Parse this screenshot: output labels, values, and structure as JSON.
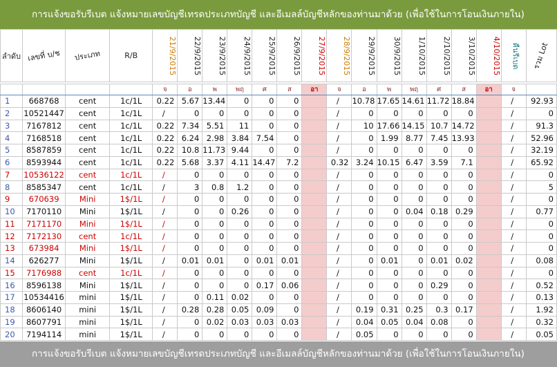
{
  "banner_top": "การแจ้งขอรับรีเบต  แจ้งหมายเลขบัญชีเทรดประเภทบัญชี และอีเมลล์บัญชีหลักของท่านมาด้วย   (เพื่อใช้ในการโอนเงินภายใน)",
  "banner_bottom": "การแจ้งขอรับรีเบต  แจ้งหมายเลขบัญชีเทรดประเภทบัญชี และอีเมลล์บัญชีหลักของท่านมาด้วย   (เพื่อใช้ในการโอนเงินภายใน)",
  "header": {
    "index": "ลำดับ",
    "account": "เลขที่ บ/ช",
    "type": "ประเภท",
    "rb": "R/B",
    "dates": [
      "21/9/2015",
      "22/9/2015",
      "23/9/2015",
      "24/9/2015",
      "25/9/2015",
      "26/9/2015",
      "27/9/2015",
      "28/9/2015",
      "29/9/2015",
      "30/9/2015",
      "1/10/2015",
      "2/10/2015",
      "3/10/2015",
      "4/10/2015"
    ],
    "refund": "คืนรีเบต",
    "total": "รวม Lot"
  },
  "days": [
    "จ",
    "อ",
    "พ",
    "พฤ",
    "ศ",
    "ส",
    "อา",
    "จ",
    "อ",
    "พ",
    "พฤ",
    "ศ",
    "ส",
    "อา",
    "จ"
  ],
  "rows": [
    {
      "idx": "1",
      "acc": "668768",
      "type": "cent",
      "rb": "1c/1L",
      "v": [
        "0.22",
        "5.67",
        "13.44",
        "0",
        "0",
        "0",
        "",
        "/",
        "10.78",
        "17.65",
        "14.61",
        "11.72",
        "18.84",
        "",
        "/"
      ],
      "total": "92.93",
      "red": false
    },
    {
      "idx": "2",
      "acc": "10521447",
      "type": "cent",
      "rb": "1c/1L",
      "v": [
        "/",
        "0",
        "0",
        "0",
        "0",
        "0",
        "",
        "/",
        "0",
        "0",
        "0",
        "0",
        "0",
        "",
        "/"
      ],
      "total": "0",
      "red": false
    },
    {
      "idx": "3",
      "acc": "7167812",
      "type": "cent",
      "rb": "1c/1L",
      "v": [
        "0.22",
        "7.34",
        "5.51",
        "11",
        "0",
        "0",
        "",
        "/",
        "10",
        "17.66",
        "14.15",
        "10.7",
        "14.72",
        "",
        "/"
      ],
      "total": "91.3",
      "red": false
    },
    {
      "idx": "4",
      "acc": "7168518",
      "type": "cent",
      "rb": "1c/1L",
      "v": [
        "0.22",
        "6.24",
        "2.98",
        "3.84",
        "7.54",
        "0",
        "",
        "/",
        "0",
        "1.99",
        "8.77",
        "7.45",
        "13.93",
        "",
        "/"
      ],
      "total": "52.96",
      "red": false
    },
    {
      "idx": "5",
      "acc": "8587859",
      "type": "cent",
      "rb": "1c/1L",
      "v": [
        "0.22",
        "10.8",
        "11.73",
        "9.44",
        "0",
        "0",
        "",
        "/",
        "0",
        "0",
        "0",
        "0",
        "0",
        "",
        "/"
      ],
      "total": "32.19",
      "red": false
    },
    {
      "idx": "6",
      "acc": "8593944",
      "type": "cent",
      "rb": "1c/1L",
      "v": [
        "0.22",
        "5.68",
        "3.37",
        "4.11",
        "14.47",
        "7.2",
        "",
        "0.32",
        "3.24",
        "10.15",
        "6.47",
        "3.59",
        "7.1",
        "",
        "/"
      ],
      "total": "65.92",
      "red": false
    },
    {
      "idx": "7",
      "acc": "10536122",
      "type": "cent",
      "rb": "1c/1L",
      "v": [
        "/",
        "0",
        "0",
        "0",
        "0",
        "0",
        "",
        "/",
        "0",
        "0",
        "0",
        "0",
        "0",
        "",
        "/"
      ],
      "total": "0",
      "red": true
    },
    {
      "idx": "8",
      "acc": "8585347",
      "type": "cent",
      "rb": "1c/1L",
      "v": [
        "/",
        "3",
        "0.8",
        "1.2",
        "0",
        "0",
        "",
        "/",
        "0",
        "0",
        "0",
        "0",
        "0",
        "",
        "/"
      ],
      "total": "5",
      "red": false
    },
    {
      "idx": "9",
      "acc": "670639",
      "type": "Mini",
      "rb": "1$/1L",
      "v": [
        "/",
        "0",
        "0",
        "0",
        "0",
        "0",
        "",
        "/",
        "0",
        "0",
        "0",
        "0",
        "0",
        "",
        "/"
      ],
      "total": "0",
      "red": true
    },
    {
      "idx": "10",
      "acc": "7170110",
      "type": "Mini",
      "rb": "1$/1L",
      "v": [
        "/",
        "0",
        "0",
        "0.26",
        "0",
        "0",
        "",
        "/",
        "0",
        "0",
        "0.04",
        "0.18",
        "0.29",
        "",
        "/"
      ],
      "total": "0.77",
      "red": false
    },
    {
      "idx": "11",
      "acc": "7171170",
      "type": "Mini",
      "rb": "1$/1L",
      "v": [
        "/",
        "0",
        "0",
        "0",
        "0",
        "0",
        "",
        "/",
        "0",
        "0",
        "0",
        "0",
        "0",
        "",
        "/"
      ],
      "total": "0",
      "red": true
    },
    {
      "idx": "12",
      "acc": "7172130",
      "type": "cent",
      "rb": "1c/1L",
      "v": [
        "/",
        "0",
        "0",
        "0",
        "0",
        "0",
        "",
        "/",
        "0",
        "0",
        "0",
        "0",
        "0",
        "",
        "/"
      ],
      "total": "0",
      "red": true
    },
    {
      "idx": "13",
      "acc": "673984",
      "type": "Mini",
      "rb": "1$/1L",
      "v": [
        "/",
        "0",
        "0",
        "0",
        "0",
        "0",
        "",
        "/",
        "0",
        "0",
        "0",
        "0",
        "0",
        "",
        "/"
      ],
      "total": "0",
      "red": true
    },
    {
      "idx": "14",
      "acc": "626277",
      "type": "Mini",
      "rb": "1$/1L",
      "v": [
        "/",
        "0.01",
        "0.01",
        "0",
        "0.01",
        "0.01",
        "",
        "/",
        "0",
        "0.01",
        "0",
        "0.01",
        "0.02",
        "",
        "/"
      ],
      "total": "0.08",
      "red": false
    },
    {
      "idx": "15",
      "acc": "7176988",
      "type": "cent",
      "rb": "1c/1L",
      "v": [
        "/",
        "0",
        "0",
        "0",
        "0",
        "0",
        "",
        "/",
        "0",
        "0",
        "0",
        "0",
        "0",
        "",
        "/"
      ],
      "total": "0",
      "red": true
    },
    {
      "idx": "16",
      "acc": "8596138",
      "type": "Mini",
      "rb": "1$/1L",
      "v": [
        "/",
        "0",
        "0",
        "0",
        "0.17",
        "0.06",
        "",
        "/",
        "0",
        "0",
        "0",
        "0.29",
        "0",
        "",
        "/"
      ],
      "total": "0.52",
      "red": false
    },
    {
      "idx": "17",
      "acc": "10534416",
      "type": "mini",
      "rb": "1$/1L",
      "v": [
        "/",
        "0",
        "0.11",
        "0.02",
        "0",
        "0",
        "",
        "/",
        "0",
        "0",
        "0",
        "0",
        "0",
        "",
        "/"
      ],
      "total": "0.13",
      "red": false
    },
    {
      "idx": "18",
      "acc": "8606140",
      "type": "mini",
      "rb": "1$/1L",
      "v": [
        "/",
        "0.28",
        "0.28",
        "0.05",
        "0.09",
        "0",
        "",
        "/",
        "0.19",
        "0.31",
        "0.25",
        "0.3",
        "0.17",
        "",
        "/"
      ],
      "total": "1.92",
      "red": false
    },
    {
      "idx": "19",
      "acc": "8607791",
      "type": "mini",
      "rb": "1$/1L",
      "v": [
        "/",
        "0",
        "0.02",
        "0.03",
        "0.03",
        "0.03",
        "",
        "/",
        "0.04",
        "0.05",
        "0.04",
        "0.08",
        "0",
        "",
        "/"
      ],
      "total": "0.32",
      "red": false
    },
    {
      "idx": "20",
      "acc": "7194114",
      "type": "mini",
      "rb": "1$/1L",
      "v": [
        "/",
        "0",
        "0",
        "0",
        "0",
        "0",
        "",
        "/",
        "0.05",
        "0",
        "0",
        "0",
        "0",
        "",
        "/"
      ],
      "total": "0.05",
      "red": false
    }
  ],
  "colors": {
    "banner_top": "#7a9a3e",
    "banner_bottom": "#9e9e9e",
    "weekend_header": "#cc7a00",
    "holiday": "#cc0000",
    "holiday_fill": "#f4cccc",
    "account_number": "#3b5aa8",
    "refund_header": "#1f7f86"
  }
}
